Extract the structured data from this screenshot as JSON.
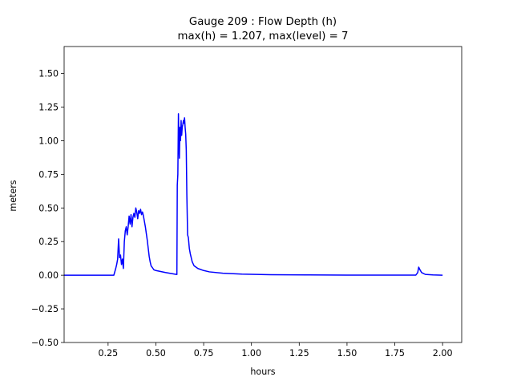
{
  "chart_data": {
    "type": "line",
    "title_line1": "Gauge 209 : Flow Depth (h)",
    "title_line2": "max(h) =   1.207,    max(level) = 7",
    "xlabel": "hours",
    "ylabel": "meters",
    "xlim": [
      0.02,
      2.1
    ],
    "ylim": [
      -0.5,
      1.7
    ],
    "xticks": [
      0.25,
      0.5,
      0.75,
      1.0,
      1.25,
      1.5,
      1.75,
      2.0
    ],
    "xtick_labels": [
      "0.25",
      "0.50",
      "0.75",
      "1.00",
      "1.25",
      "1.50",
      "1.75",
      "2.00"
    ],
    "yticks": [
      -0.5,
      -0.25,
      0.0,
      0.25,
      0.5,
      0.75,
      1.0,
      1.25,
      1.5
    ],
    "ytick_labels": [
      "−0.50",
      "−0.25",
      "0.00",
      "0.25",
      "0.50",
      "0.75",
      "1.00",
      "1.25",
      "1.50"
    ],
    "grid": false,
    "line_color": "#0000ff",
    "series": [
      {
        "x": [
          0.02,
          0.1,
          0.2,
          0.28,
          0.29,
          0.295,
          0.3,
          0.305,
          0.31,
          0.315,
          0.32,
          0.325,
          0.33,
          0.335,
          0.34,
          0.345,
          0.35,
          0.355,
          0.36,
          0.365,
          0.37,
          0.375,
          0.38,
          0.385,
          0.39,
          0.395,
          0.4,
          0.405,
          0.41,
          0.415,
          0.42,
          0.425,
          0.43,
          0.435,
          0.44,
          0.445,
          0.45,
          0.455,
          0.46,
          0.465,
          0.47,
          0.475,
          0.48,
          0.485,
          0.49,
          0.5,
          0.55,
          0.61,
          0.612,
          0.615,
          0.618,
          0.62,
          0.623,
          0.626,
          0.629,
          0.632,
          0.635,
          0.638,
          0.641,
          0.644,
          0.647,
          0.65,
          0.653,
          0.656,
          0.659,
          0.662,
          0.666,
          0.67,
          0.675,
          0.68,
          0.69,
          0.7,
          0.72,
          0.75,
          0.78,
          0.85,
          0.95,
          1.1,
          1.3,
          1.5,
          1.7,
          1.86,
          1.87,
          1.875,
          1.88,
          1.89,
          1.91,
          1.95,
          2.0
        ],
        "y": [
          0.0,
          0.0,
          0.0,
          0.0,
          0.05,
          0.08,
          0.12,
          0.27,
          0.13,
          0.15,
          0.08,
          0.12,
          0.05,
          0.25,
          0.33,
          0.36,
          0.3,
          0.36,
          0.44,
          0.38,
          0.45,
          0.36,
          0.43,
          0.46,
          0.43,
          0.5,
          0.47,
          0.42,
          0.48,
          0.46,
          0.49,
          0.45,
          0.47,
          0.44,
          0.4,
          0.36,
          0.31,
          0.26,
          0.2,
          0.14,
          0.1,
          0.07,
          0.06,
          0.05,
          0.04,
          0.035,
          0.02,
          0.005,
          0.67,
          0.75,
          1.2,
          1.05,
          0.87,
          1.1,
          1.0,
          1.15,
          1.04,
          1.1,
          1.12,
          1.15,
          1.13,
          1.17,
          1.1,
          1.05,
          0.93,
          0.6,
          0.3,
          0.28,
          0.2,
          0.16,
          0.1,
          0.07,
          0.05,
          0.035,
          0.025,
          0.015,
          0.008,
          0.004,
          0.002,
          0.001,
          0.001,
          0.001,
          0.02,
          0.06,
          0.045,
          0.02,
          0.006,
          0.002,
          0.0
        ]
      }
    ]
  }
}
